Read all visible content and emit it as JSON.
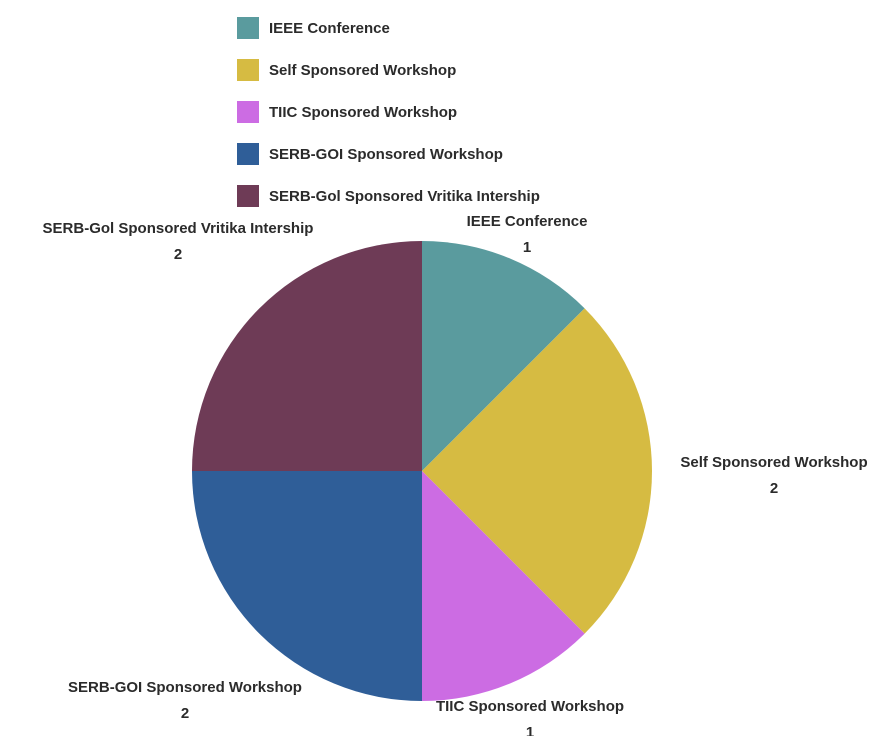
{
  "chart_data": {
    "type": "pie",
    "title": "",
    "legend_position": "top",
    "slices": [
      {
        "label": "IEEE Conference",
        "value": 1,
        "color": "#5a9b9e"
      },
      {
        "label": "Self Sponsored Workshop",
        "value": 2,
        "color": "#d6bb42"
      },
      {
        "label": "TIIC Sponsored Workshop",
        "value": 1,
        "color": "#cc6ce3"
      },
      {
        "label": "SERB-GOI Sponsored Workshop",
        "value": 2,
        "color": "#2f5e98"
      },
      {
        "label": "SERB-Gol Sponsored Vritika Intership",
        "value": 2,
        "color": "#6e3b56"
      }
    ]
  }
}
